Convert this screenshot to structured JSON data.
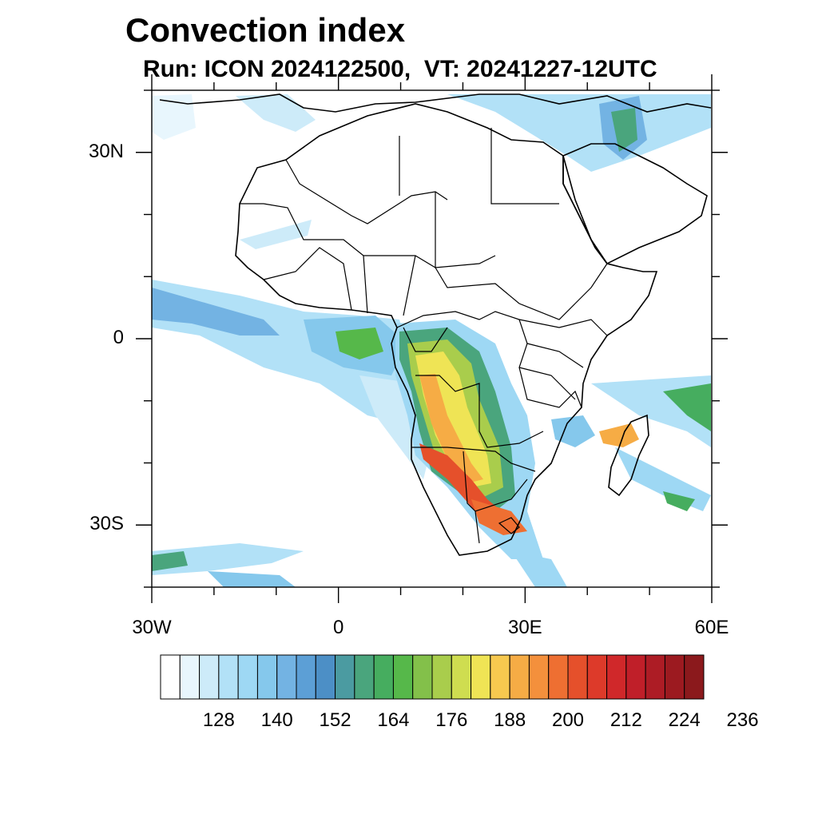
{
  "title": "Convection index",
  "subtitle": "Run: ICON 2024122500,  VT: 20241227-12UTC",
  "map": {
    "lon_range": [
      -30,
      60
    ],
    "lat_range": [
      -40,
      40
    ],
    "lat_ticks": [
      {
        "value": 30,
        "label": "30N"
      },
      {
        "value": 0,
        "label": "0"
      },
      {
        "value": -30,
        "label": "30S"
      }
    ],
    "lon_ticks": [
      {
        "value": -30,
        "label": "30W"
      },
      {
        "value": 0,
        "label": "0"
      },
      {
        "value": 30,
        "label": "30E"
      },
      {
        "value": 60,
        "label": "60E"
      }
    ],
    "minor_step_deg": 10
  },
  "colorbar": {
    "colors": [
      "#ffffff",
      "#e8f6fd",
      "#cdebf9",
      "#b2e1f7",
      "#9ed8f4",
      "#85c8ec",
      "#73b3e3",
      "#5c9fd6",
      "#4c8fc6",
      "#4b9ba1",
      "#4aa57d",
      "#46ad5f",
      "#56b84a",
      "#83c04a",
      "#a9cd4c",
      "#cfdd50",
      "#efe455",
      "#f7c94f",
      "#f6ac45",
      "#f4903c",
      "#ee6f32",
      "#e5502b",
      "#dd3a2a",
      "#d0282a",
      "#c01f29",
      "#ad1c25",
      "#9c1a20",
      "#8b191c"
    ],
    "labels": [
      "128",
      "140",
      "152",
      "164",
      "176",
      "188",
      "200",
      "212",
      "224",
      "236"
    ]
  }
}
